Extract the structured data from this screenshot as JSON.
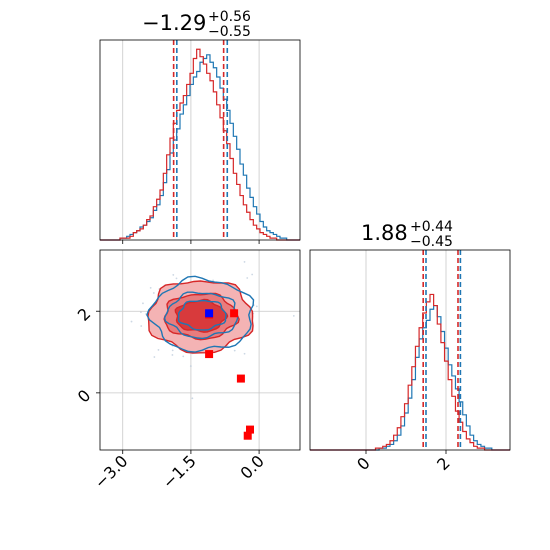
{
  "chart_data": {
    "type": "corner",
    "colors": {
      "blue": "#1f77b4",
      "red": "#d62728",
      "marker": "#ff0000",
      "marker_blue": "#0000ff",
      "grid": "#c8c8c8"
    },
    "param1": {
      "title_value": "−1.29",
      "title_plus": "+0.56",
      "title_minus": "−0.55",
      "xlim": [
        -3.5,
        0.9
      ],
      "xticks": [
        -3.0,
        -1.5,
        0.0
      ],
      "xtick_labels": [
        "−3.0",
        "−1.5",
        "0.0"
      ],
      "blue_quantiles": [
        -1.81,
        -0.7
      ],
      "red_quantiles": [
        -1.88,
        -0.78
      ],
      "hist_blue": [
        0,
        0,
        0,
        0,
        0,
        0,
        1,
        1,
        2,
        3,
        4,
        5,
        7,
        8,
        10,
        12,
        16,
        19,
        24,
        31,
        38,
        47,
        54,
        60,
        68,
        73,
        78,
        84,
        88,
        91,
        96,
        98,
        100,
        96,
        93,
        88,
        82,
        76,
        70,
        63,
        56,
        49,
        41,
        35,
        28,
        23,
        18,
        14,
        10,
        7,
        5,
        4,
        3,
        2,
        1,
        1,
        0,
        0,
        0,
        0
      ],
      "hist_red": [
        0,
        0,
        0,
        0,
        0,
        0,
        1,
        1,
        1,
        2,
        4,
        5,
        6,
        8,
        11,
        13,
        18,
        22,
        27,
        36,
        46,
        55,
        63,
        70,
        74,
        78,
        84,
        90,
        98,
        103,
        99,
        95,
        90,
        86,
        80,
        73,
        66,
        59,
        52,
        44,
        36,
        30,
        24,
        19,
        15,
        11,
        8,
        6,
        4,
        3,
        2,
        1,
        1,
        0,
        0,
        0,
        0,
        0,
        0,
        0
      ]
    },
    "param2": {
      "title_value": "1.88",
      "title_plus": "+0.44",
      "title_minus": "−0.45",
      "xlim": [
        -1.4,
        3.6
      ],
      "xticks": [
        0,
        2
      ],
      "xtick_labels": [
        "0",
        "2"
      ],
      "blue_quantiles": [
        1.5,
        2.36
      ],
      "red_quantiles": [
        1.43,
        2.3
      ],
      "hist_blue": [
        0,
        0,
        0,
        0,
        0,
        0,
        0,
        0,
        0,
        0,
        0,
        0,
        0,
        0,
        0,
        0,
        0,
        0,
        0,
        1,
        1,
        2,
        3,
        5,
        8,
        13,
        20,
        28,
        38,
        50,
        60,
        66,
        70,
        76,
        78,
        72,
        64,
        55,
        46,
        40,
        33,
        26,
        19,
        13,
        8,
        5,
        3,
        2,
        1,
        1,
        0,
        0,
        0,
        0,
        0
      ],
      "hist_red": [
        0,
        0,
        0,
        0,
        0,
        0,
        0,
        0,
        0,
        0,
        0,
        0,
        0,
        0,
        0,
        0,
        0,
        0,
        1,
        1,
        2,
        3,
        5,
        8,
        12,
        18,
        25,
        35,
        45,
        56,
        66,
        74,
        80,
        84,
        78,
        68,
        58,
        48,
        38,
        29,
        21,
        15,
        10,
        6,
        4,
        2,
        1,
        1,
        0,
        0,
        0,
        0,
        0,
        0,
        0
      ]
    },
    "joint": {
      "ylim": [
        -1.4,
        3.5
      ],
      "yticks": [
        0,
        2
      ],
      "ytick_labels": [
        "0",
        "2"
      ],
      "center": [
        -1.29,
        1.88
      ],
      "red_levels": [
        [
          0.55,
          0.38
        ],
        [
          0.8,
          0.55
        ],
        [
          1.15,
          0.88
        ]
      ],
      "blue_levels": [
        [
          0.52,
          0.36
        ],
        [
          0.78,
          0.55
        ],
        [
          1.12,
          0.88
        ]
      ],
      "blue_marker": [
        -1.1,
        1.95
      ],
      "red_markers": [
        [
          -1.1,
          1.92
        ],
        [
          -0.55,
          1.95
        ],
        [
          -1.1,
          0.95
        ],
        [
          -0.4,
          0.35
        ],
        [
          -0.2,
          -0.9
        ],
        [
          -0.25,
          -1.05
        ]
      ]
    }
  }
}
